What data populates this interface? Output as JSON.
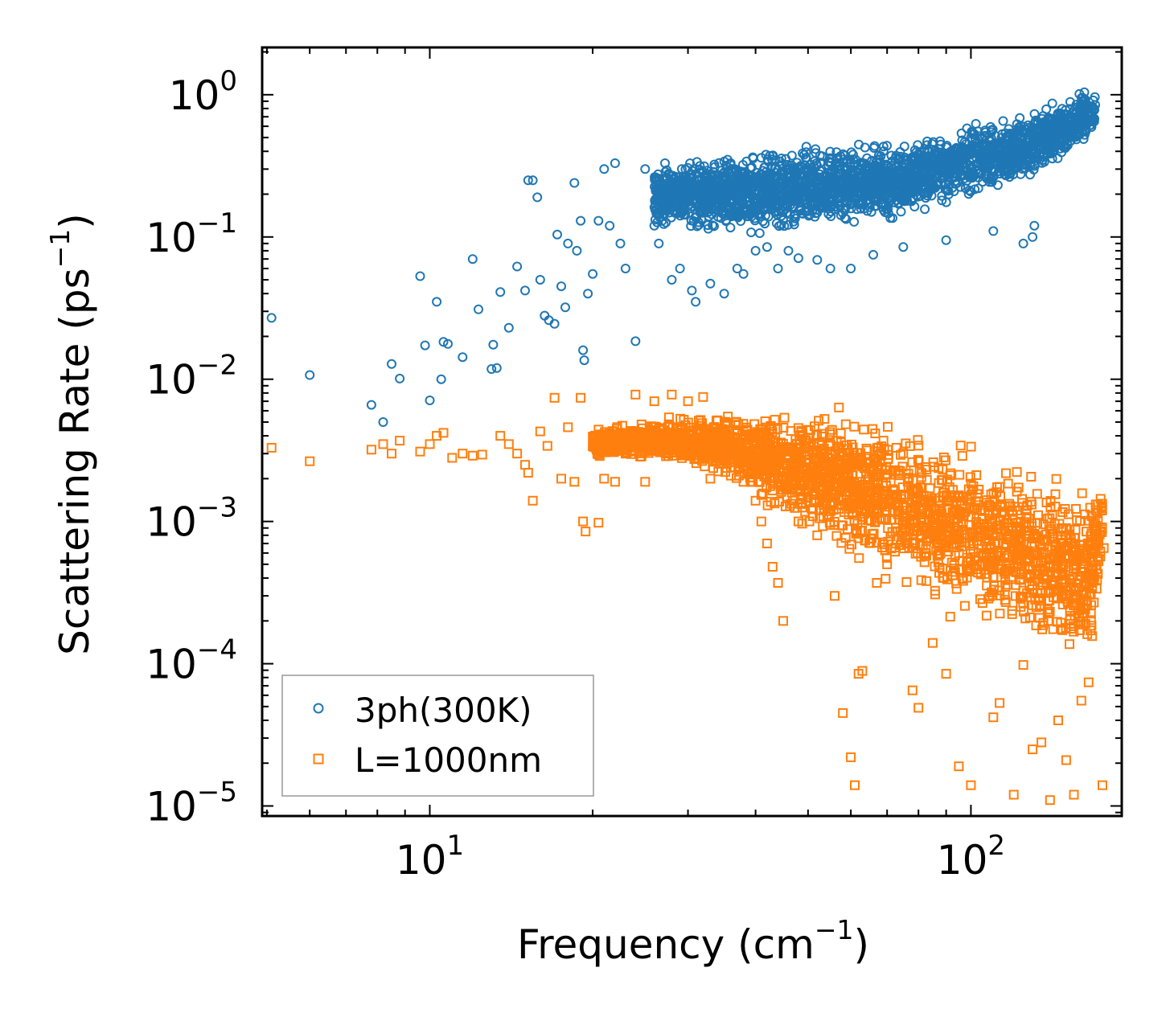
{
  "chart_data": {
    "type": "scatter",
    "x_scale": "log",
    "y_scale": "log",
    "xlabel": "Frequency",
    "xlabel_unit": "cm",
    "ylabel": "Scattering Rate",
    "ylabel_unit": "ps",
    "unit_exponent": "−1",
    "xlim": [
      4.9,
      190
    ],
    "ylim": [
      8.5e-06,
      2.15
    ],
    "grid": false,
    "legend_position": "lower-left",
    "x_major_ticks": [
      {
        "value": 10,
        "base": "10",
        "exp": "1"
      },
      {
        "value": 100,
        "base": "10",
        "exp": "2"
      }
    ],
    "y_major_ticks": [
      {
        "value": 1,
        "base": "10",
        "exp": "0"
      },
      {
        "value": 0.1,
        "base": "10",
        "exp": "−1"
      },
      {
        "value": 0.01,
        "base": "10",
        "exp": "−2"
      },
      {
        "value": 0.001,
        "base": "10",
        "exp": "−3"
      },
      {
        "value": 0.0001,
        "base": "10",
        "exp": "−4"
      },
      {
        "value": 1e-05,
        "base": "10",
        "exp": "−5"
      }
    ],
    "series": [
      {
        "name": "3ph(300K)",
        "marker": "circle",
        "color": "#1f77b4",
        "points": [
          [
            5.1,
            0.027
          ],
          [
            6.0,
            0.0107
          ],
          [
            7.8,
            0.0066
          ],
          [
            8.2,
            0.005
          ],
          [
            8.5,
            0.0128
          ],
          [
            8.8,
            0.0101
          ],
          [
            9.6,
            0.053
          ],
          [
            9.8,
            0.0173
          ],
          [
            10.0,
            0.0071
          ],
          [
            10.3,
            0.035
          ],
          [
            10.5,
            0.01
          ],
          [
            10.6,
            0.0183
          ],
          [
            10.8,
            0.0177
          ],
          [
            11.5,
            0.0143
          ],
          [
            12.0,
            0.07
          ],
          [
            12.3,
            0.031
          ],
          [
            13.0,
            0.0118
          ],
          [
            13.1,
            0.0175
          ],
          [
            13.3,
            0.012
          ],
          [
            13.5,
            0.041
          ],
          [
            14.0,
            0.023
          ],
          [
            14.5,
            0.062
          ],
          [
            15.0,
            0.042
          ],
          [
            15.2,
            0.25
          ],
          [
            15.5,
            0.25
          ],
          [
            15.8,
            0.19
          ],
          [
            16.0,
            0.05
          ],
          [
            16.3,
            0.028
          ],
          [
            16.6,
            0.026
          ],
          [
            17.0,
            0.0245
          ],
          [
            17.2,
            0.104
          ],
          [
            17.5,
            0.045
          ],
          [
            17.8,
            0.032
          ],
          [
            18.0,
            0.09
          ],
          [
            18.5,
            0.24
          ],
          [
            18.7,
            0.08
          ],
          [
            19.0,
            0.13
          ],
          [
            19.2,
            0.016
          ],
          [
            19.3,
            0.0136
          ],
          [
            19.6,
            0.04
          ],
          [
            20.0,
            0.055
          ],
          [
            20.5,
            0.13
          ],
          [
            21.0,
            0.3
          ],
          [
            21.5,
            0.12
          ],
          [
            22.0,
            0.33
          ],
          [
            22.5,
            0.09
          ],
          [
            23.0,
            0.06
          ],
          [
            24.0,
            0.0185
          ],
          [
            25.0,
            0.3
          ],
          [
            26.0,
            0.12
          ],
          [
            26.5,
            0.09
          ],
          [
            27.0,
            0.2
          ],
          [
            28.0,
            0.05
          ],
          [
            29.0,
            0.06
          ],
          [
            30.5,
            0.042
          ],
          [
            31.0,
            0.035
          ],
          [
            33.0,
            0.047
          ],
          [
            35.0,
            0.04
          ],
          [
            37.0,
            0.06
          ],
          [
            38.0,
            0.055
          ],
          [
            40.0,
            0.08
          ],
          [
            42.0,
            0.085
          ],
          [
            44.0,
            0.06
          ],
          [
            46.0,
            0.08
          ],
          [
            48.0,
            0.071
          ],
          [
            52.0,
            0.069
          ],
          [
            55.0,
            0.06
          ],
          [
            60.0,
            0.06
          ],
          [
            66.0,
            0.075
          ],
          [
            75.0,
            0.085
          ],
          [
            90.0,
            0.095
          ],
          [
            110.0,
            0.11
          ],
          [
            125.0,
            0.09
          ],
          [
            130.0,
            0.1
          ],
          [
            131.0,
            0.12
          ]
        ],
        "dense_band": [
          [
            26,
            0.1,
            0.37
          ],
          [
            32,
            0.1,
            0.4
          ],
          [
            40,
            0.09,
            0.45
          ],
          [
            50,
            0.1,
            0.48
          ],
          [
            60,
            0.11,
            0.5
          ],
          [
            70,
            0.12,
            0.48
          ],
          [
            80,
            0.14,
            0.52
          ],
          [
            90,
            0.16,
            0.58
          ],
          [
            100,
            0.17,
            0.72
          ],
          [
            110,
            0.2,
            0.75
          ],
          [
            120,
            0.22,
            0.78
          ],
          [
            130,
            0.26,
            0.8
          ],
          [
            140,
            0.3,
            0.95
          ],
          [
            150,
            0.32,
            1.05
          ],
          [
            160,
            0.4,
            1.15
          ],
          [
            170,
            0.55,
            1.1
          ]
        ]
      },
      {
        "name": "L=1000nm",
        "marker": "square",
        "color": "#ff7f0e",
        "points": [
          [
            5.1,
            0.0033
          ],
          [
            6.0,
            0.00265
          ],
          [
            7.8,
            0.0032
          ],
          [
            8.2,
            0.0035
          ],
          [
            8.5,
            0.003
          ],
          [
            8.8,
            0.0037
          ],
          [
            9.6,
            0.0031
          ],
          [
            10.0,
            0.0035
          ],
          [
            10.3,
            0.004
          ],
          [
            10.6,
            0.0042
          ],
          [
            11.0,
            0.0028
          ],
          [
            11.5,
            0.003
          ],
          [
            12.0,
            0.0029
          ],
          [
            12.5,
            0.00295
          ],
          [
            13.5,
            0.004
          ],
          [
            14.0,
            0.0035
          ],
          [
            14.5,
            0.003
          ],
          [
            15.0,
            0.0025
          ],
          [
            15.2,
            0.0022
          ],
          [
            15.5,
            0.0014
          ],
          [
            16.0,
            0.0043
          ],
          [
            16.5,
            0.0034
          ],
          [
            17.0,
            0.0074
          ],
          [
            17.5,
            0.002
          ],
          [
            18.0,
            0.0046
          ],
          [
            18.5,
            0.0019
          ],
          [
            19.0,
            0.0074
          ],
          [
            19.2,
            0.001
          ],
          [
            19.4,
            0.00085
          ],
          [
            20.5,
            0.00098
          ],
          [
            21.0,
            0.002
          ],
          [
            22.0,
            0.0019
          ],
          [
            23.0,
            0.003
          ],
          [
            24.0,
            0.0078
          ],
          [
            25.0,
            0.0019
          ],
          [
            26.0,
            0.007
          ],
          [
            28.0,
            0.0078
          ],
          [
            30.0,
            0.007
          ],
          [
            32.0,
            0.0075
          ],
          [
            33.0,
            0.002
          ],
          [
            36.0,
            0.0021
          ],
          [
            38.0,
            0.0019
          ],
          [
            40.0,
            0.0014
          ],
          [
            41.0,
            0.001
          ],
          [
            42.0,
            0.0007
          ],
          [
            43.0,
            0.00048
          ],
          [
            44.0,
            0.00037
          ],
          [
            45.0,
            0.0002
          ],
          [
            48.0,
            0.001
          ],
          [
            52.0,
            0.0008
          ],
          [
            56.0,
            0.0003
          ],
          [
            58.0,
            4.5e-05
          ],
          [
            60.0,
            2.2e-05
          ],
          [
            61.0,
            1.4e-05
          ],
          [
            62.0,
            8.5e-05
          ],
          [
            63.0,
            8.9e-05
          ],
          [
            67.0,
            0.00037
          ],
          [
            70.0,
            0.0005
          ],
          [
            78.0,
            6.5e-05
          ],
          [
            80.0,
            4.9e-05
          ],
          [
            85.0,
            0.00014
          ],
          [
            90.0,
            8.5e-05
          ],
          [
            95.0,
            1.9e-05
          ],
          [
            100.0,
            1.4e-05
          ],
          [
            110.0,
            4.2e-05
          ],
          [
            113.0,
            5.3e-05
          ],
          [
            120.0,
            1.2e-05
          ],
          [
            125.0,
            9.8e-05
          ],
          [
            130.0,
            2.5e-05
          ],
          [
            135.0,
            2.8e-05
          ],
          [
            140.0,
            1.1e-05
          ],
          [
            145.0,
            4e-05
          ],
          [
            150.0,
            2.1e-05
          ],
          [
            155.0,
            1.2e-05
          ],
          [
            160.0,
            5.5e-05
          ],
          [
            165.0,
            7.4e-05
          ],
          [
            175.0,
            1.4e-05
          ],
          [
            176.0,
            0.00065
          ],
          [
            170.0,
            0.0012
          ]
        ],
        "dense_band": [
          [
            20,
            0.0028,
            0.0045
          ],
          [
            28,
            0.0025,
            0.0055
          ],
          [
            36,
            0.0018,
            0.0062
          ],
          [
            44,
            0.0011,
            0.0066
          ],
          [
            52,
            0.00075,
            0.0068
          ],
          [
            60,
            0.0005,
            0.0065
          ],
          [
            70,
            0.00035,
            0.006
          ],
          [
            80,
            0.00026,
            0.0052
          ],
          [
            90,
            0.0002,
            0.0045
          ],
          [
            100,
            0.00017,
            0.004
          ],
          [
            110,
            0.00015,
            0.0035
          ],
          [
            120,
            0.00013,
            0.0031
          ],
          [
            130,
            0.00012,
            0.0028
          ],
          [
            140,
            0.0001,
            0.0025
          ],
          [
            150,
            9e-05,
            0.0023
          ],
          [
            160,
            8e-05,
            0.0022
          ],
          [
            168,
            0.0001,
            0.0021
          ],
          [
            175,
            0.0006,
            0.002
          ]
        ]
      }
    ]
  }
}
